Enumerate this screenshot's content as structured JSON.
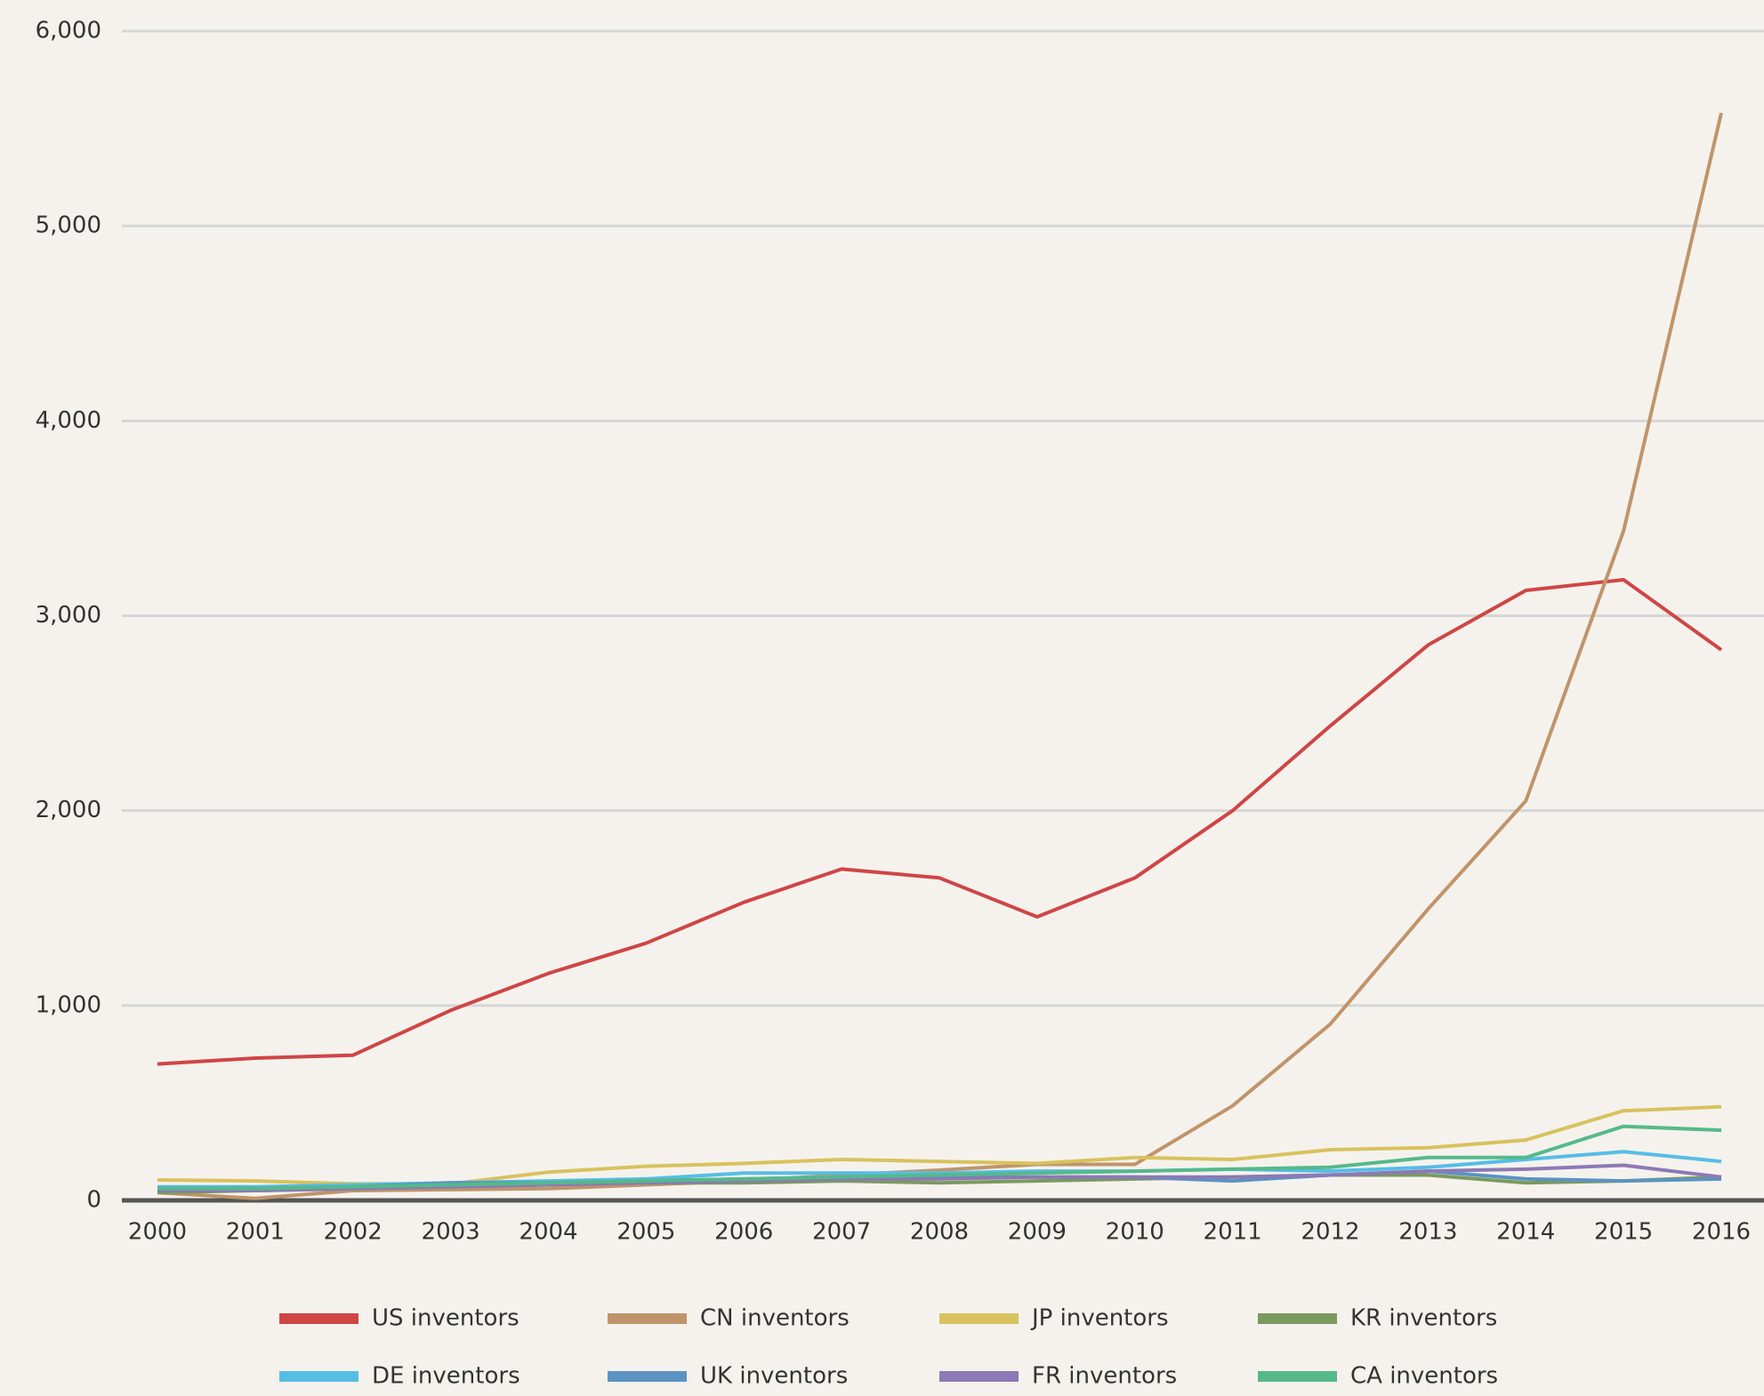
{
  "chart_data": {
    "type": "line",
    "categories": [
      "2000",
      "2001",
      "2002",
      "2003",
      "2004",
      "2005",
      "2006",
      "2007",
      "2008",
      "2009",
      "2010",
      "2011",
      "2012",
      "2013",
      "2014",
      "2015",
      "2016"
    ],
    "series": [
      {
        "name": "US inventors",
        "color": "#d04545",
        "values": [
          700,
          730,
          745,
          975,
          1165,
          1320,
          1530,
          1700,
          1655,
          1455,
          1655,
          2000,
          2435,
          2850,
          3130,
          3185,
          2825
        ]
      },
      {
        "name": "CN inventors",
        "color": "#c0946a",
        "values": [
          40,
          10,
          50,
          55,
          60,
          80,
          100,
          130,
          155,
          185,
          185,
          485,
          905,
          1495,
          2050,
          3435,
          5580
        ]
      },
      {
        "name": "JP inventors",
        "color": "#d8c25d",
        "values": [
          105,
          100,
          85,
          85,
          145,
          175,
          190,
          210,
          200,
          190,
          220,
          210,
          260,
          270,
          310,
          460,
          480
        ]
      },
      {
        "name": "KR inventors",
        "color": "#7a9a5e",
        "values": [
          40,
          50,
          60,
          70,
          80,
          90,
          90,
          100,
          90,
          100,
          110,
          120,
          130,
          130,
          90,
          100,
          120
        ]
      },
      {
        "name": "DE inventors",
        "color": "#56bde6",
        "values": [
          70,
          70,
          80,
          90,
          100,
          110,
          140,
          140,
          140,
          150,
          150,
          160,
          150,
          170,
          210,
          250,
          200
        ]
      },
      {
        "name": "UK inventors",
        "color": "#5b93c2",
        "values": [
          60,
          60,
          70,
          90,
          90,
          100,
          110,
          120,
          120,
          120,
          120,
          100,
          130,
          150,
          110,
          100,
          110
        ]
      },
      {
        "name": "FR inventors",
        "color": "#8c79b5",
        "values": [
          50,
          50,
          60,
          70,
          80,
          90,
          100,
          110,
          110,
          120,
          120,
          120,
          130,
          150,
          160,
          180,
          120
        ]
      },
      {
        "name": "CA inventors",
        "color": "#55b98a",
        "values": [
          60,
          60,
          70,
          80,
          90,
          100,
          110,
          120,
          130,
          140,
          150,
          160,
          170,
          220,
          220,
          380,
          360
        ]
      }
    ],
    "ylim": [
      0,
      6000
    ],
    "yticks": [
      0,
      {
        "value": 1000,
        "label": "1,000"
      },
      {
        "value": 2000,
        "label": "2,000"
      },
      {
        "value": 3000,
        "label": "3,000"
      },
      {
        "value": 4000,
        "label": "4,000"
      },
      {
        "value": 5000,
        "label": "5,000"
      },
      {
        "value": 6000,
        "label": "6,000"
      }
    ],
    "grid": true,
    "legend": "bottom"
  }
}
